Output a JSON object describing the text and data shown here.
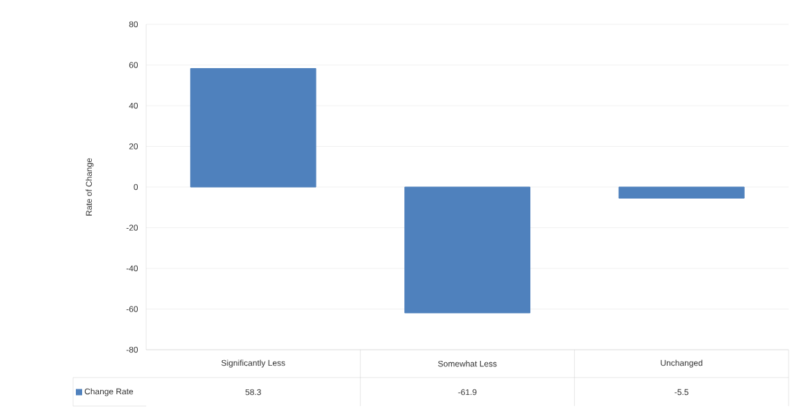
{
  "chart_data": {
    "type": "bar",
    "ylabel": "Rate of Change",
    "categories": [
      "Significantly Less",
      "Somewhat Less",
      "Unchanged"
    ],
    "series": [
      {
        "name": "Change Rate",
        "color": "#4f81bd",
        "values": [
          58.3,
          -61.9,
          -5.5
        ]
      }
    ],
    "ylim": [
      -80,
      80
    ],
    "yticks": [
      -80,
      -60,
      -40,
      -20,
      0,
      20,
      40,
      60,
      80
    ],
    "grid": "y",
    "data_labels": true,
    "legend": "bottom"
  }
}
